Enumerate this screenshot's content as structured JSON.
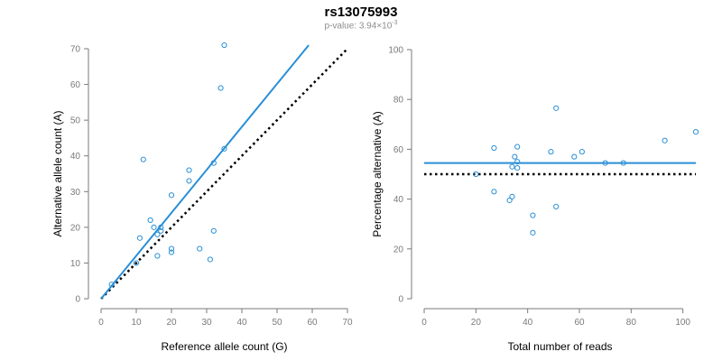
{
  "title": "rs13075993",
  "subtitle": {
    "prefix": "p-value: 3.94×10",
    "exponent": "-3"
  },
  "colors": {
    "points": "#2a8fd6",
    "fit_line": "#2a8fd6",
    "ref_line": "#000000",
    "axis": "#7a7a7a"
  },
  "chart_data": [
    {
      "type": "scatter",
      "xlabel": "Reference allele count (G)",
      "ylabel": "Alternative allele count (A)",
      "xlim": [
        0,
        70
      ],
      "ylim": [
        0,
        70
      ],
      "xticks": [
        0,
        10,
        20,
        30,
        40,
        50,
        60,
        70
      ],
      "yticks": [
        0,
        10,
        20,
        30,
        40,
        50,
        60,
        70
      ],
      "points": [
        {
          "x": 3,
          "y": 4
        },
        {
          "x": 10,
          "y": 10
        },
        {
          "x": 11,
          "y": 17
        },
        {
          "x": 12,
          "y": 39
        },
        {
          "x": 14,
          "y": 22
        },
        {
          "x": 15,
          "y": 20
        },
        {
          "x": 16,
          "y": 12
        },
        {
          "x": 16,
          "y": 18
        },
        {
          "x": 17,
          "y": 19
        },
        {
          "x": 17,
          "y": 20
        },
        {
          "x": 20,
          "y": 14
        },
        {
          "x": 20,
          "y": 13
        },
        {
          "x": 20,
          "y": 29
        },
        {
          "x": 25,
          "y": 33
        },
        {
          "x": 25,
          "y": 36
        },
        {
          "x": 28,
          "y": 14
        },
        {
          "x": 31,
          "y": 11
        },
        {
          "x": 32,
          "y": 19
        },
        {
          "x": 32,
          "y": 38
        },
        {
          "x": 34,
          "y": 59
        },
        {
          "x": 35,
          "y": 42
        },
        {
          "x": 35,
          "y": 71
        }
      ],
      "fit_line": {
        "x": [
          0,
          59
        ],
        "y": [
          0,
          71
        ]
      },
      "reference_line": {
        "x": [
          0,
          70
        ],
        "y": [
          0,
          70
        ]
      }
    },
    {
      "type": "scatter",
      "xlabel": "Total number of reads",
      "ylabel": "Percentage alternative (A)",
      "xlim": [
        0,
        105
      ],
      "ylim": [
        0,
        100
      ],
      "xticks": [
        0,
        20,
        40,
        60,
        80,
        100
      ],
      "yticks": [
        0,
        20,
        40,
        60,
        80,
        100
      ],
      "points": [
        {
          "x": 20,
          "y": 50
        },
        {
          "x": 27,
          "y": 60.5
        },
        {
          "x": 27,
          "y": 43
        },
        {
          "x": 33,
          "y": 39.5
        },
        {
          "x": 34,
          "y": 41
        },
        {
          "x": 34,
          "y": 53
        },
        {
          "x": 35,
          "y": 57
        },
        {
          "x": 36,
          "y": 52.5
        },
        {
          "x": 36,
          "y": 55
        },
        {
          "x": 36,
          "y": 61
        },
        {
          "x": 42,
          "y": 33.5
        },
        {
          "x": 42,
          "y": 26.5
        },
        {
          "x": 49,
          "y": 59
        },
        {
          "x": 51,
          "y": 76.5
        },
        {
          "x": 51,
          "y": 37
        },
        {
          "x": 58,
          "y": 57
        },
        {
          "x": 61,
          "y": 59
        },
        {
          "x": 70,
          "y": 54.5
        },
        {
          "x": 77,
          "y": 54.5
        },
        {
          "x": 93,
          "y": 63.5
        },
        {
          "x": 105,
          "y": 67
        }
      ],
      "fit_line": {
        "x": [
          0,
          105
        ],
        "y": [
          54.5,
          54.5
        ]
      },
      "reference_line": {
        "x": [
          0,
          105
        ],
        "y": [
          50,
          50
        ]
      }
    }
  ]
}
